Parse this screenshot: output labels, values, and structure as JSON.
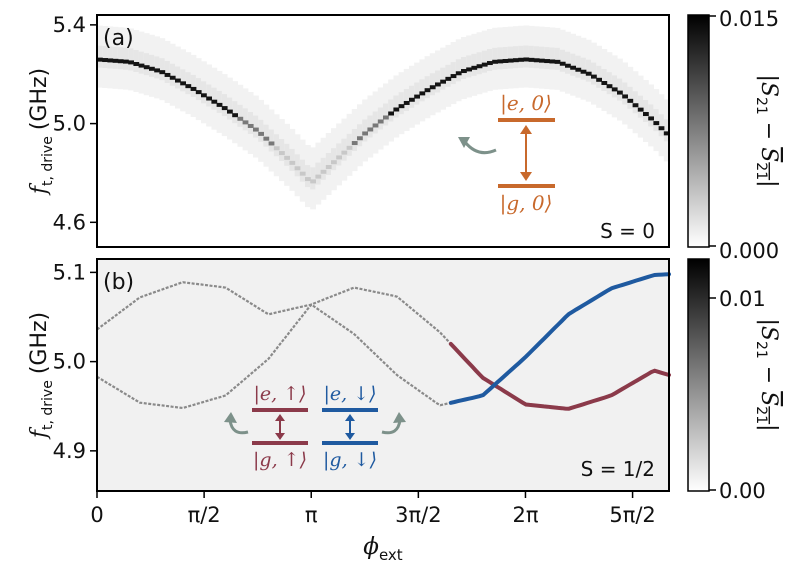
{
  "chart_data": [
    {
      "type": "heatmap",
      "panel_label": "(a)",
      "annotation": "S = 0",
      "ylabel": "f",
      "ylabel_sub": "t, drive",
      "ylabel_unit": "(GHz)",
      "ylim": [
        4.5,
        5.44
      ],
      "yticks": [
        4.6,
        5.0,
        5.4
      ],
      "ytick_labels": [
        "4.6",
        "5.0",
        "5.4"
      ],
      "curve": {
        "x_pi": [
          0.0,
          0.15,
          0.3,
          0.45,
          0.6,
          0.75,
          0.9,
          1.0,
          1.1,
          1.25,
          1.4,
          1.55,
          1.7,
          1.85,
          2.0,
          2.15,
          2.3,
          2.45,
          2.6,
          2.67
        ],
        "y_ghz": [
          5.26,
          5.25,
          5.21,
          5.14,
          5.06,
          4.97,
          4.85,
          4.76,
          4.84,
          4.96,
          5.06,
          5.14,
          5.21,
          5.25,
          5.26,
          5.25,
          5.2,
          5.12,
          5.01,
          4.95
        ]
      },
      "colorbar": {
        "label": "|S21 - S21|",
        "min_label": "0.000",
        "max_label": "0.015",
        "min": 0.0,
        "max": 0.015
      },
      "inset": {
        "upper": "|e, 0⟩",
        "lower": "|g, 0⟩",
        "color": "#c8692c"
      }
    },
    {
      "type": "heatmap",
      "panel_label": "(b)",
      "annotation": "S = 1/2",
      "ylabel": "f",
      "ylabel_sub": "t, drive",
      "ylabel_unit": "(GHz)",
      "ylim": [
        4.855,
        5.115
      ],
      "yticks": [
        4.9,
        5.0,
        5.1
      ],
      "ytick_labels": [
        "4.9",
        "5.0",
        "5.1"
      ],
      "series": [
        {
          "x_pi": [
            0.0,
            0.2,
            0.4,
            0.6,
            0.8,
            1.0,
            1.2,
            1.4,
            1.6,
            1.8,
            2.0,
            2.2,
            2.4,
            2.6,
            2.67
          ],
          "y_ghz": [
            4.983,
            4.954,
            4.948,
            4.962,
            5.003,
            5.064,
            5.083,
            5.073,
            5.033,
            4.982,
            4.952,
            4.947,
            4.962,
            4.99,
            4.985
          ]
        },
        {
          "x_pi": [
            0.0,
            0.2,
            0.4,
            0.6,
            0.8,
            1.0,
            1.2,
            1.4,
            1.6,
            1.8,
            2.0,
            2.2,
            2.4,
            2.6,
            2.67
          ],
          "y_ghz": [
            5.036,
            5.072,
            5.089,
            5.083,
            5.053,
            5.064,
            5.031,
            4.985,
            4.951,
            4.962,
            5.005,
            5.053,
            5.082,
            5.097,
            5.098
          ]
        }
      ],
      "highlight_from_x_pi": 1.65,
      "highlight_colors": [
        "#8b3a4a",
        "#1f5aa0"
      ],
      "colorbar": {
        "label": "|S21 - S21|",
        "min_label": "0.00",
        "max_label": "0.01",
        "min": 0.0,
        "max": 0.012
      },
      "inset": {
        "left": {
          "upper": "|e, ↑⟩",
          "lower": "|g, ↑⟩",
          "color": "#8b3a4a"
        },
        "right": {
          "upper": "|e, ↓⟩",
          "lower": "|g, ↓⟩",
          "color": "#1f5aa0"
        }
      }
    }
  ],
  "x_axis": {
    "label": "ϕ",
    "label_sub": "ext",
    "xlim_pi": [
      0,
      2.67
    ],
    "ticks_pi": [
      0,
      0.5,
      1.0,
      1.5,
      2.0,
      2.5
    ],
    "tick_labels": [
      "0",
      "π/2",
      "π",
      "3π/2",
      "2π",
      "5π/2"
    ]
  }
}
